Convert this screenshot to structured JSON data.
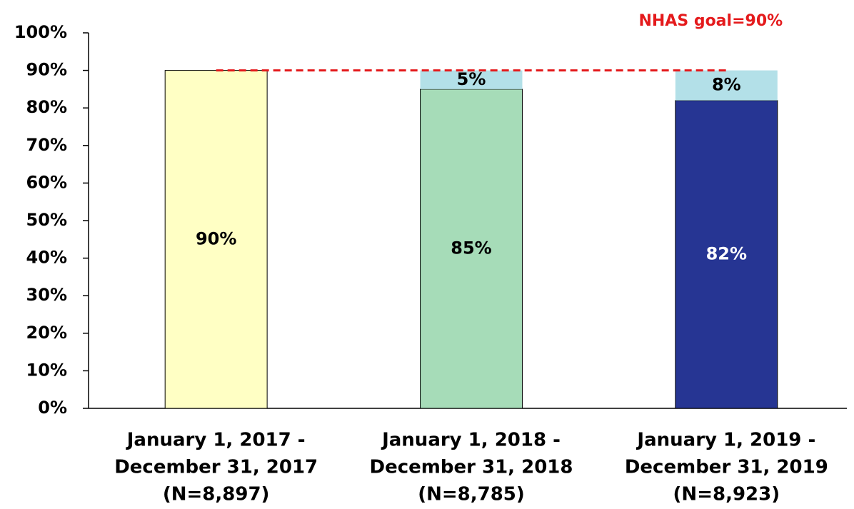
{
  "chart_data": {
    "type": "stacked_bar",
    "categories": [
      [
        "January 1, 2017 -",
        "December 31, 2017",
        "(N=8,897)"
      ],
      [
        "January 1, 2018 -",
        "December 31, 2018",
        "(N=8,785)"
      ],
      [
        "January 1, 2019 -",
        "December 31, 2019",
        "(N=8,923)"
      ]
    ],
    "series": [
      {
        "colors": [
          "#ffffc4",
          "#a6dcb8",
          "#263593"
        ],
        "label_colors": [
          "#000000",
          "#000000",
          "#ffffff"
        ],
        "values": [
          90,
          85,
          82
        ],
        "value_labels": [
          "90%",
          "85%",
          "82%"
        ]
      },
      {
        "color": "#b3e0e8",
        "label_colors": [
          "#000000",
          "#000000",
          "#000000"
        ],
        "values": [
          null,
          5,
          8
        ],
        "value_labels": [
          null,
          "5%",
          "8%"
        ]
      }
    ],
    "ylim": [
      0,
      100
    ],
    "yticks": [
      {
        "value": 0,
        "label": "0%"
      },
      {
        "value": 10,
        "label": "10%"
      },
      {
        "value": 20,
        "label": "20%"
      },
      {
        "value": 30,
        "label": "30%"
      },
      {
        "value": 40,
        "label": "40%"
      },
      {
        "value": 50,
        "label": "50%"
      },
      {
        "value": 60,
        "label": "60%"
      },
      {
        "value": 70,
        "label": "70%"
      },
      {
        "value": 80,
        "label": "80%"
      },
      {
        "value": 90,
        "label": "90%"
      },
      {
        "value": 100,
        "label": "100%"
      }
    ],
    "goal": {
      "value": 90,
      "label": "NHAS goal=90%",
      "color": "#e41a1c"
    }
  }
}
